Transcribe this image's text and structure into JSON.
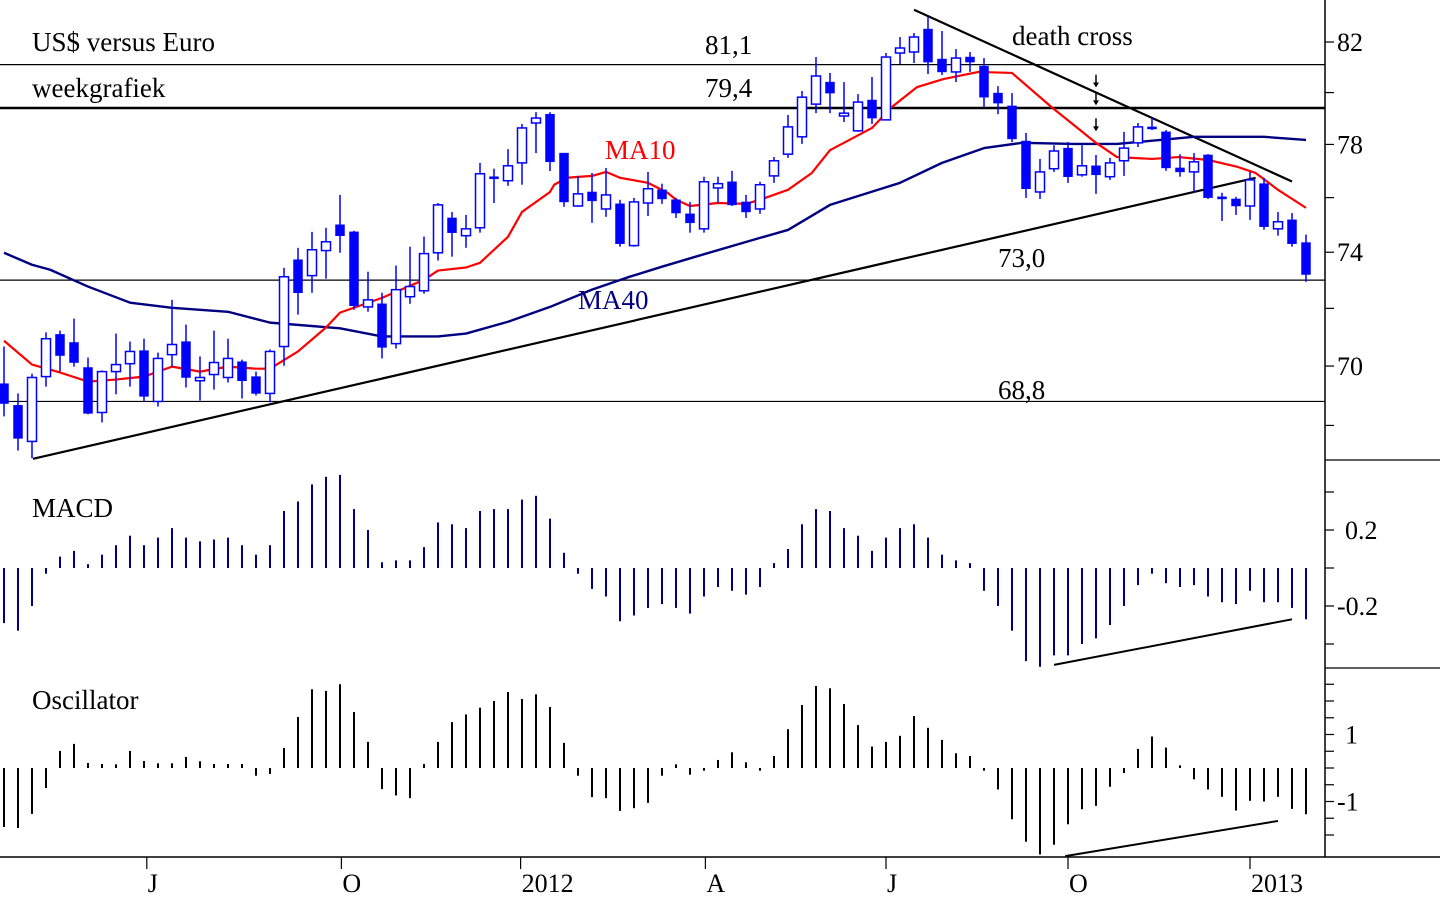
{
  "colors": {
    "candle": "#0000FF",
    "ma10": "#FF0000",
    "ma40": "#000080",
    "macd": "#000080",
    "osc": "#000000",
    "lines": "#000000"
  },
  "chart_data": [
    {
      "type": "candlestick",
      "title": "US$ versus Euro",
      "subtitle": "weekgrafiek",
      "scale": "log",
      "ylim": [
        66.8,
        83.5
      ],
      "yticks": [
        82,
        78,
        74,
        70
      ],
      "yticks_minor": [
        80,
        76,
        72,
        68
      ],
      "ytick_labels": [
        "82",
        "78",
        "74",
        "70"
      ],
      "xticks": [
        {
          "index": 10.2,
          "label": "J"
        },
        {
          "index": 24.1,
          "label": "O"
        },
        {
          "index": 36.9,
          "label": "2012"
        },
        {
          "index": 50.1,
          "label": "A"
        },
        {
          "index": 63.0,
          "label": "J"
        },
        {
          "index": 76.0,
          "label": "O"
        },
        {
          "index": 89.0,
          "label": "2013"
        }
      ],
      "candles_ohlc": [
        [
          69.4,
          70.67,
          68.3,
          68.73
        ],
        [
          68.67,
          69.07,
          67.17,
          67.57
        ],
        [
          67.47,
          69.74,
          66.92,
          69.61
        ],
        [
          69.64,
          71.16,
          69.3,
          70.94
        ],
        [
          71.09,
          71.22,
          69.81,
          70.36
        ],
        [
          70.81,
          71.64,
          69.98,
          70.12
        ],
        [
          69.95,
          70.29,
          68.37,
          68.4
        ],
        [
          68.43,
          69.85,
          68.1,
          69.81
        ],
        [
          69.81,
          71.12,
          69.04,
          70.05
        ],
        [
          70.08,
          70.84,
          69.3,
          70.5
        ],
        [
          70.53,
          70.94,
          68.8,
          68.97
        ],
        [
          68.8,
          70.46,
          68.63,
          70.26
        ],
        [
          70.39,
          72.3,
          69.98,
          70.74
        ],
        [
          70.84,
          71.43,
          69.27,
          69.61
        ],
        [
          69.5,
          70.33,
          68.83,
          69.61
        ],
        [
          69.71,
          71.22,
          69.2,
          70.12
        ],
        [
          69.61,
          70.94,
          69.44,
          70.26
        ],
        [
          70.15,
          70.22,
          68.9,
          69.5
        ],
        [
          69.64,
          69.81,
          69.0,
          69.07
        ],
        [
          69.07,
          70.57,
          68.77,
          70.5
        ],
        [
          70.67,
          73.44,
          70.01,
          73.12
        ],
        [
          73.73,
          74.16,
          71.78,
          72.55
        ],
        [
          73.16,
          74.74,
          72.55,
          74.09
        ],
        [
          74.06,
          74.89,
          73.05,
          74.38
        ],
        [
          75.0,
          76.1,
          73.98,
          74.6
        ],
        [
          74.74,
          74.78,
          71.95,
          72.09
        ],
        [
          72.05,
          73.3,
          71.88,
          72.3
        ],
        [
          72.16,
          72.55,
          70.26,
          70.64
        ],
        [
          70.77,
          73.52,
          70.6,
          72.66
        ],
        [
          72.41,
          74.2,
          72.16,
          72.77
        ],
        [
          72.62,
          74.57,
          72.52,
          73.95
        ],
        [
          73.98,
          75.8,
          73.7,
          75.73
        ],
        [
          75.25,
          75.47,
          73.84,
          74.71
        ],
        [
          74.6,
          75.36,
          74.16,
          74.85
        ],
        [
          74.89,
          77.3,
          74.71,
          76.89
        ],
        [
          76.78,
          77.08,
          75.8,
          76.7
        ],
        [
          76.63,
          77.82,
          76.44,
          77.19
        ],
        [
          77.3,
          78.78,
          76.48,
          78.63
        ],
        [
          78.82,
          79.24,
          77.67,
          79.01
        ],
        [
          79.16,
          79.24,
          76.99,
          77.34
        ],
        [
          77.67,
          77.67,
          75.66,
          75.84
        ],
        [
          75.69,
          76.81,
          75.66,
          76.14
        ],
        [
          76.21,
          76.92,
          75.07,
          75.88
        ],
        [
          75.58,
          77.11,
          75.29,
          76.1
        ],
        [
          75.77,
          75.92,
          74.2,
          74.31
        ],
        [
          74.24,
          75.99,
          74.2,
          75.84
        ],
        [
          75.8,
          76.96,
          75.32,
          76.33
        ],
        [
          76.29,
          76.52,
          75.77,
          75.95
        ],
        [
          75.92,
          75.99,
          75.25,
          75.43
        ],
        [
          75.4,
          75.84,
          74.71,
          75.07
        ],
        [
          74.85,
          76.78,
          74.71,
          76.59
        ],
        [
          76.36,
          76.78,
          75.8,
          76.52
        ],
        [
          76.59,
          77.0,
          75.69,
          75.73
        ],
        [
          75.84,
          76.1,
          75.25,
          75.47
        ],
        [
          75.58,
          76.59,
          75.4,
          76.48
        ],
        [
          76.81,
          77.52,
          76.55,
          77.38
        ],
        [
          77.63,
          79.13,
          77.49,
          78.67
        ],
        [
          78.29,
          80.06,
          78.02,
          79.82
        ],
        [
          79.55,
          81.4,
          79.2,
          80.65
        ],
        [
          80.41,
          80.77,
          79.2,
          79.98
        ],
        [
          79.09,
          80.41,
          78.86,
          79.2
        ],
        [
          78.52,
          79.94,
          78.48,
          79.63
        ],
        [
          79.71,
          80.61,
          78.78,
          79.01
        ],
        [
          78.94,
          81.56,
          78.94,
          81.4
        ],
        [
          81.56,
          82.2,
          81.12,
          81.76
        ],
        [
          81.6,
          82.36,
          81.16,
          82.2
        ],
        [
          82.52,
          83.0,
          80.73,
          81.2
        ],
        [
          81.32,
          82.44,
          80.69,
          80.81
        ],
        [
          80.81,
          81.72,
          80.41,
          81.36
        ],
        [
          81.4,
          81.6,
          80.81,
          81.2
        ],
        [
          81.04,
          81.36,
          79.44,
          79.82
        ],
        [
          79.98,
          80.25,
          79.16,
          79.59
        ],
        [
          79.48,
          79.98,
          78.09,
          78.21
        ],
        [
          78.13,
          78.44,
          75.99,
          76.33
        ],
        [
          76.21,
          77.45,
          75.95,
          76.96
        ],
        [
          77.08,
          77.97,
          76.96,
          77.75
        ],
        [
          77.86,
          78.09,
          76.55,
          76.78
        ],
        [
          76.85,
          77.97,
          76.78,
          77.19
        ],
        [
          77.19,
          77.6,
          76.14,
          76.85
        ],
        [
          76.78,
          77.49,
          76.66,
          77.3
        ],
        [
          77.38,
          78.48,
          76.81,
          77.86
        ],
        [
          78.06,
          78.82,
          77.9,
          78.67
        ],
        [
          78.67,
          79.01,
          78.55,
          78.59
        ],
        [
          78.48,
          78.55,
          77.0,
          77.11
        ],
        [
          77.11,
          77.63,
          76.78,
          76.96
        ],
        [
          76.96,
          77.67,
          76.18,
          77.34
        ],
        [
          77.6,
          77.63,
          75.95,
          76.0
        ],
        [
          76.03,
          76.18,
          75.14,
          75.95
        ],
        [
          75.95,
          76.03,
          75.36,
          75.69
        ],
        [
          75.69,
          76.96,
          75.18,
          76.66
        ],
        [
          76.52,
          76.74,
          74.82,
          74.93
        ],
        [
          74.85,
          75.47,
          74.6,
          75.11
        ],
        [
          75.18,
          75.43,
          74.2,
          74.31
        ],
        [
          74.35,
          74.64,
          72.94,
          73.2
        ]
      ],
      "ma10": {
        "label": "MA10",
        "points": [
          [
            0,
            70.87
          ],
          [
            2,
            70.05
          ],
          [
            4,
            69.78
          ],
          [
            6,
            69.47
          ],
          [
            8,
            69.54
          ],
          [
            10,
            69.64
          ],
          [
            12,
            69.98
          ],
          [
            14,
            69.81
          ],
          [
            16,
            69.98
          ],
          [
            18,
            69.91
          ],
          [
            19,
            69.91
          ],
          [
            21,
            70.5
          ],
          [
            23,
            71.33
          ],
          [
            24,
            71.85
          ],
          [
            27,
            72.37
          ],
          [
            30,
            73.01
          ],
          [
            31,
            73.34
          ],
          [
            33,
            73.45
          ],
          [
            34,
            73.62
          ],
          [
            36,
            74.56
          ],
          [
            37,
            75.47
          ],
          [
            39,
            76.21
          ],
          [
            39.3,
            76.48
          ],
          [
            40.2,
            76.74
          ],
          [
            42,
            76.81
          ],
          [
            43,
            76.96
          ],
          [
            44,
            76.74
          ],
          [
            46,
            76.55
          ],
          [
            47.4,
            76.18
          ],
          [
            48,
            75.92
          ],
          [
            49,
            75.69
          ],
          [
            51,
            75.8
          ],
          [
            53,
            75.77
          ],
          [
            54,
            75.92
          ],
          [
            56,
            76.29
          ],
          [
            57.7,
            76.92
          ],
          [
            59,
            77.78
          ],
          [
            62,
            78.63
          ],
          [
            63.4,
            79.43
          ],
          [
            65.2,
            80.21
          ],
          [
            67.1,
            80.53
          ],
          [
            69.6,
            80.81
          ],
          [
            72,
            80.77
          ],
          [
            74.9,
            79.4
          ],
          [
            78,
            78.06
          ],
          [
            79.5,
            77.52
          ],
          [
            82,
            77.45
          ],
          [
            83.9,
            77.52
          ],
          [
            86,
            77.41
          ],
          [
            88.1,
            77.15
          ],
          [
            89.4,
            76.92
          ],
          [
            91,
            76.29
          ],
          [
            93,
            75.62
          ]
        ]
      },
      "ma40": {
        "label": "MA40",
        "points": [
          [
            0,
            73.98
          ],
          [
            2,
            73.55
          ],
          [
            3.3,
            73.37
          ],
          [
            6,
            72.77
          ],
          [
            9,
            72.2
          ],
          [
            12,
            72.02
          ],
          [
            16,
            71.88
          ],
          [
            19,
            71.5
          ],
          [
            24,
            71.3
          ],
          [
            27,
            71.02
          ],
          [
            31,
            71.02
          ],
          [
            33,
            71.12
          ],
          [
            36,
            71.53
          ],
          [
            39,
            72.05
          ],
          [
            42,
            72.66
          ],
          [
            44.5,
            73.09
          ],
          [
            47,
            73.48
          ],
          [
            49.4,
            73.84
          ],
          [
            54,
            74.52
          ],
          [
            56,
            74.81
          ],
          [
            59,
            75.73
          ],
          [
            64,
            76.55
          ],
          [
            67,
            77.3
          ],
          [
            70,
            77.86
          ],
          [
            72.7,
            78.06
          ],
          [
            76.4,
            78.02
          ],
          [
            79.5,
            78.02
          ],
          [
            82.6,
            78.17
          ],
          [
            85,
            78.29
          ],
          [
            90,
            78.29
          ],
          [
            93,
            78.17
          ]
        ]
      },
      "levels": [
        {
          "value": 81.1,
          "label": "81,1",
          "weight": 1
        },
        {
          "value": 79.4,
          "label": "79,4",
          "weight": 2
        },
        {
          "value": 73.0,
          "label": "73,0",
          "weight": 1
        },
        {
          "value": 68.8,
          "label": "68,8",
          "weight": 1
        }
      ],
      "trendlines": [
        {
          "name": "support",
          "points": [
            [
              2.07,
              66.9
            ],
            [
              89.4,
              76.74
            ]
          ]
        },
        {
          "name": "downtrend",
          "points": [
            [
              65,
              83.3
            ],
            [
              92,
              76.6
            ]
          ]
        }
      ],
      "annotation": "death cross",
      "death_cross_arrows": [
        {
          "index": 78,
          "from": 80.7,
          "to": 80.2
        },
        {
          "index": 78,
          "from": 80.0,
          "to": 79.5
        },
        {
          "index": 78,
          "from": 79.0,
          "to": 78.5
        }
      ]
    },
    {
      "type": "bar",
      "title": "MACD",
      "ylim": [
        -0.55,
        0.55
      ],
      "yticks": [
        0.4,
        0.2,
        0,
        -0.2,
        -0.4
      ],
      "ytick_labels": [
        "0.2",
        "-0.2"
      ],
      "values": [
        -0.29,
        -0.33,
        -0.2,
        -0.03,
        0.06,
        0.09,
        0.02,
        0.07,
        0.12,
        0.17,
        0.12,
        0.16,
        0.21,
        0.16,
        0.14,
        0.15,
        0.16,
        0.12,
        0.07,
        0.12,
        0.3,
        0.35,
        0.44,
        0.48,
        0.49,
        0.31,
        0.2,
        0.03,
        0.04,
        0.04,
        0.11,
        0.24,
        0.23,
        0.21,
        0.3,
        0.31,
        0.31,
        0.36,
        0.38,
        0.26,
        0.08,
        -0.03,
        -0.11,
        -0.15,
        -0.28,
        -0.25,
        -0.21,
        -0.19,
        -0.21,
        -0.24,
        -0.15,
        -0.1,
        -0.12,
        -0.14,
        -0.1,
        0.01,
        0.1,
        0.23,
        0.31,
        0.3,
        0.21,
        0.17,
        0.09,
        0.16,
        0.21,
        0.23,
        0.16,
        0.07,
        0.04,
        0.01,
        -0.12,
        -0.2,
        -0.33,
        -0.49,
        -0.52,
        -0.46,
        -0.46,
        -0.4,
        -0.37,
        -0.3,
        -0.2,
        -0.09,
        -0.03,
        -0.08,
        -0.1,
        -0.09,
        -0.15,
        -0.18,
        -0.19,
        -0.12,
        -0.18,
        -0.18,
        -0.21,
        -0.27
      ],
      "trendline": [
        [
          75,
          -0.51
        ],
        [
          92,
          -0.27
        ]
      ]
    },
    {
      "type": "bar",
      "title": "Oscillator",
      "ylim": [
        -2.65,
        2.6
      ],
      "yticks": [
        2.5,
        2,
        1.5,
        1,
        0.5,
        0,
        -0.5,
        -1,
        -1.5,
        -2
      ],
      "ytick_labels": [
        "1",
        "-1"
      ],
      "values": [
        -1.76,
        -1.79,
        -1.37,
        -0.6,
        0.51,
        0.72,
        0.15,
        0.03,
        0.02,
        0.51,
        0.21,
        0.05,
        0.05,
        0.33,
        0.2,
        0.03,
        0.03,
        0.03,
        -0.23,
        -0.18,
        0.6,
        1.52,
        2.35,
        2.3,
        2.5,
        1.67,
        0.78,
        -0.63,
        -0.82,
        -0.9,
        0.12,
        0.78,
        1.37,
        1.6,
        1.8,
        2.0,
        2.27,
        2.06,
        2.2,
        1.82,
        0.75,
        -0.23,
        -0.87,
        -0.9,
        -1.28,
        -1.2,
        -1.04,
        -0.23,
        0.02,
        -0.2,
        -0.08,
        0.24,
        0.47,
        0.17,
        -0.08,
        0.36,
        1.16,
        1.88,
        2.45,
        2.38,
        1.91,
        1.28,
        0.64,
        0.78,
        0.96,
        1.55,
        1.2,
        0.84,
        0.44,
        0.36,
        -0.08,
        -0.64,
        -1.53,
        -2.2,
        -2.58,
        -2.29,
        -1.68,
        -1.23,
        -1.13,
        -0.56,
        -0.15,
        0.57,
        0.94,
        0.61,
        0.08,
        -0.34,
        -0.64,
        -0.86,
        -1.27,
        -0.98,
        -1.0,
        -0.86,
        -1.22,
        -1.38
      ],
      "trendline": [
        [
          75.8,
          -2.63
        ],
        [
          91,
          -1.58
        ]
      ]
    }
  ]
}
